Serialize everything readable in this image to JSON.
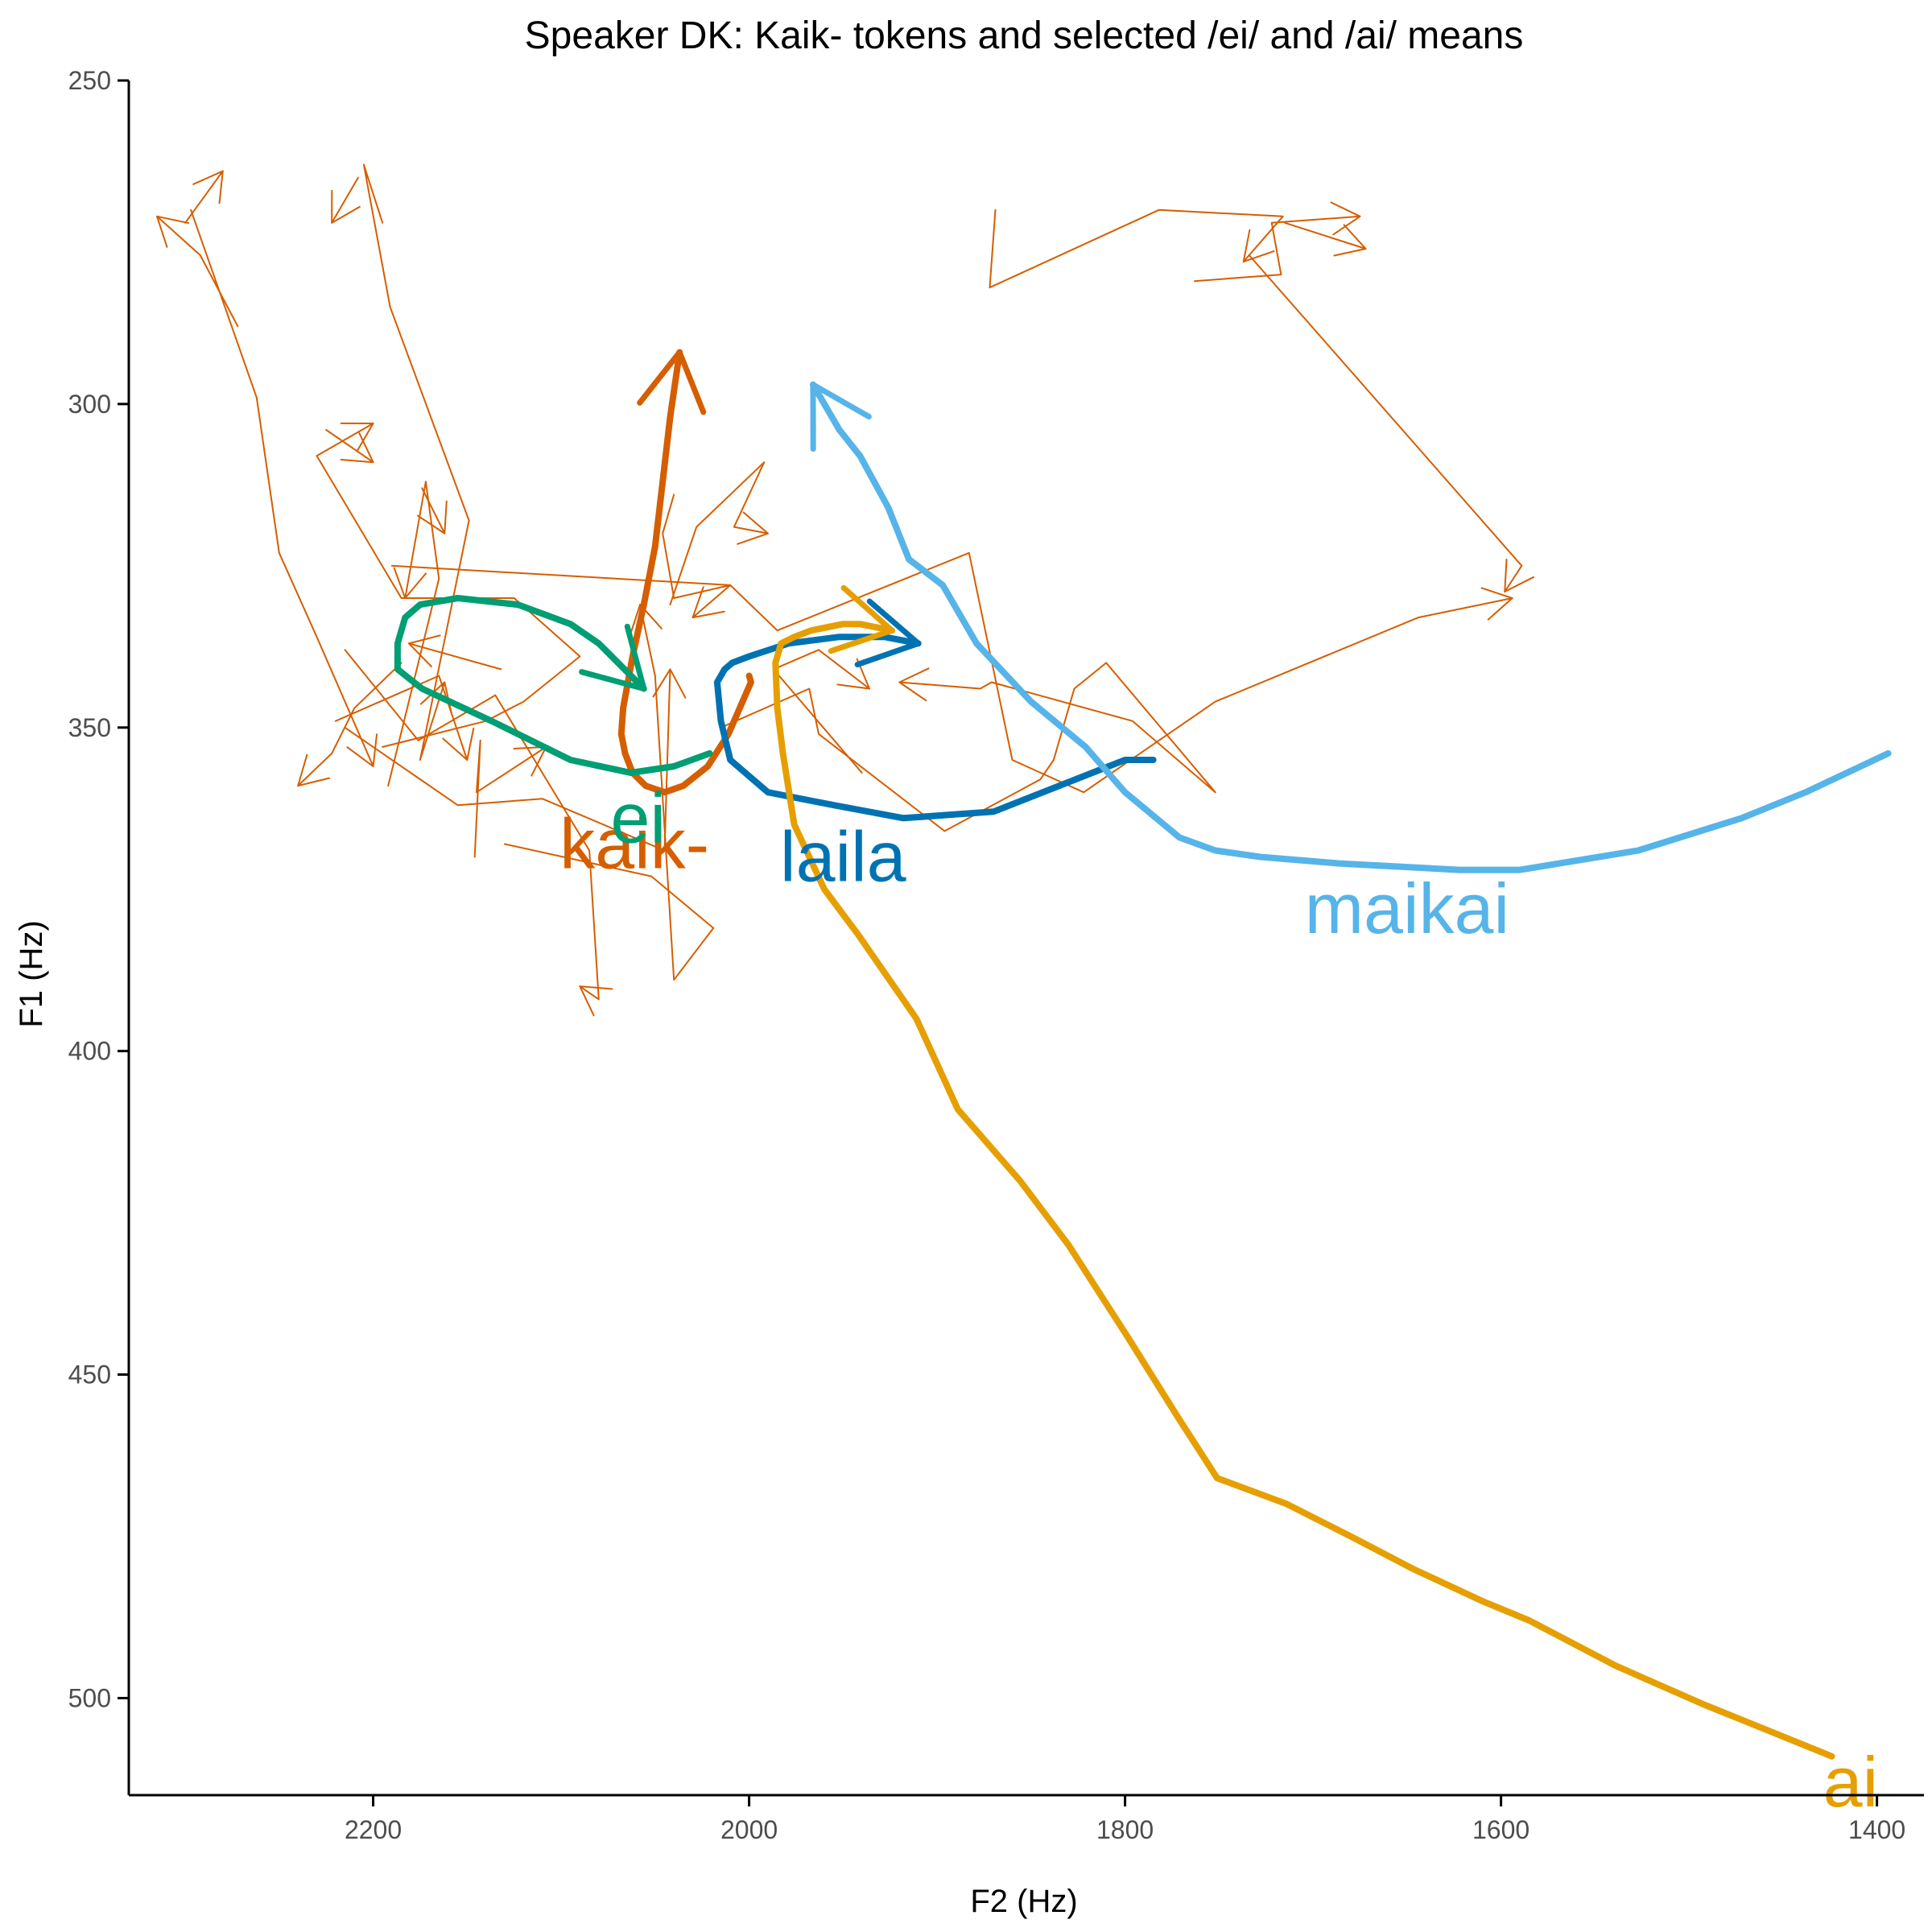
{
  "chart_data": {
    "type": "line",
    "title": "Speaker DK: Kaik- tokens and selected /ei/ and /ai/ means",
    "xlabel": "F2 (Hz)",
    "ylabel": "F1 (Hz)",
    "x_reversed": true,
    "y_reversed": true,
    "xlim": [
      2330,
      1375
    ],
    "ylim": [
      250,
      515
    ],
    "x_ticks": [
      2200,
      2000,
      1800,
      1600,
      1400
    ],
    "y_ticks": [
      250,
      300,
      350,
      400,
      450,
      500
    ],
    "x_tick_labels": [
      "2200",
      "2000",
      "1800",
      "1600",
      "1400"
    ],
    "y_tick_labels": [
      "250",
      "300",
      "350",
      "400",
      "450",
      "500"
    ],
    "grid": false,
    "legend": "none (direct labels)",
    "colors": {
      "kaik": "#D55E00",
      "ei": "#009E73",
      "laila": "#0072B2",
      "maikai": "#56B4E9",
      "ai": "#E69F00"
    },
    "tokens": [
      {
        "color": "#D55E00",
        "points": [
          [
            2130,
            368
          ],
          [
            2052,
            373
          ],
          [
            2019,
            381
          ],
          [
            2040,
            389
          ],
          [
            2050,
            342
          ],
          [
            2058,
            331
          ]
        ]
      },
      {
        "color": "#D55E00",
        "points": [
          [
            2190,
            325
          ],
          [
            2010,
            328
          ],
          [
            2030,
            333
          ]
        ]
      },
      {
        "color": "#D55E00",
        "points": [
          [
            2272,
            288
          ],
          [
            2292,
            277
          ],
          [
            2315,
            271
          ]
        ]
      },
      {
        "color": "#D55E00",
        "points": [
          [
            2300,
            272
          ],
          [
            2280,
            264
          ]
        ]
      },
      {
        "color": "#D55E00",
        "points": [
          [
            2297,
            270
          ],
          [
            2262,
            299
          ],
          [
            2250,
            323
          ],
          [
            2230,
            336
          ],
          [
            2200,
            356
          ]
        ]
      },
      {
        "color": "#D55E00",
        "points": [
          [
            2215,
            338
          ],
          [
            2176,
            352
          ],
          [
            2135,
            345
          ],
          [
            2085,
            369
          ],
          [
            2080,
            392
          ],
          [
            2090,
            390
          ]
        ]
      },
      {
        "color": "#D55E00",
        "points": [
          [
            2195,
            353
          ],
          [
            2140,
            349
          ],
          [
            2120,
            346
          ],
          [
            2090,
            339
          ],
          [
            2125,
            330
          ],
          [
            2185,
            330
          ],
          [
            2230,
            308
          ],
          [
            2200,
            303
          ]
        ]
      },
      {
        "color": "#D55E00",
        "points": [
          [
            2225,
            304
          ],
          [
            2200,
            309
          ]
        ]
      },
      {
        "color": "#D55E00",
        "points": [
          [
            2185,
            340
          ],
          [
            2210,
            347
          ],
          [
            2222,
            354
          ],
          [
            2240,
            359
          ]
        ]
      },
      {
        "color": "#D55E00",
        "points": [
          [
            2220,
            349
          ],
          [
            2165,
            342
          ],
          [
            2150,
            355
          ]
        ]
      },
      {
        "color": "#D55E00",
        "points": [
          [
            2192,
            359
          ],
          [
            2165,
            327
          ],
          [
            2172,
            312
          ],
          [
            2183,
            330
          ]
        ]
      },
      {
        "color": "#D55E00",
        "points": [
          [
            2174,
            313
          ],
          [
            2162,
            320
          ]
        ]
      },
      {
        "color": "#D55E00",
        "points": [
          [
            2215,
            350
          ],
          [
            2155,
            362
          ],
          [
            2110,
            361
          ],
          [
            2045,
            369
          ],
          [
            2042,
            341
          ]
        ]
      },
      {
        "color": "#D55E00",
        "points": [
          [
            2132,
            341
          ],
          [
            2181,
            337
          ]
        ]
      },
      {
        "color": "#D55E00",
        "points": [
          [
            2195,
            272
          ],
          [
            2205,
            263
          ],
          [
            2191,
            285
          ],
          [
            2149,
            318
          ],
          [
            2175,
            355
          ],
          [
            2162,
            343
          ]
        ]
      },
      {
        "color": "#D55E00",
        "points": [
          [
            2208,
            265
          ],
          [
            2222,
            272
          ]
        ]
      },
      {
        "color": "#D55E00",
        "points": [
          [
            2146,
            370
          ],
          [
            2143,
            352
          ],
          [
            2145,
            360
          ],
          [
            2108,
            353
          ]
        ]
      },
      {
        "color": "#D55E00",
        "points": [
          [
            2042,
            331
          ],
          [
            2028,
            319
          ],
          [
            1992,
            309
          ],
          [
            2008,
            319
          ],
          [
            1990,
            320
          ]
        ]
      },
      {
        "color": "#D55E00",
        "points": [
          [
            2015,
            350
          ],
          [
            1968,
            344
          ],
          [
            1963,
            351
          ],
          [
            1896,
            366
          ],
          [
            1845,
            358
          ],
          [
            1838,
            355
          ],
          [
            1827,
            344
          ],
          [
            1810,
            340
          ],
          [
            1752,
            360
          ],
          [
            1796,
            349
          ],
          [
            1871,
            343
          ],
          [
            1877,
            344
          ],
          [
            1920,
            343
          ]
        ]
      },
      {
        "color": "#D55E00",
        "points": [
          [
            2040,
            314
          ],
          [
            2046,
            320
          ],
          [
            2040,
            330
          ],
          [
            2010,
            328
          ],
          [
            1985,
            335
          ],
          [
            1883,
            323
          ],
          [
            1860,
            355
          ],
          [
            1822,
            360
          ],
          [
            1752,
            346
          ],
          [
            1644,
            333
          ],
          [
            1594,
            330
          ]
        ]
      },
      {
        "color": "#D55E00",
        "points": [
          [
            1869,
            270
          ],
          [
            1872,
            282
          ],
          [
            1782,
            270
          ],
          [
            1716,
            271
          ],
          [
            1737,
            278
          ]
        ]
      },
      {
        "color": "#D55E00",
        "points": [
          [
            1763,
            281
          ],
          [
            1717,
            280
          ],
          [
            1722,
            272
          ],
          [
            1675,
            271
          ]
        ]
      },
      {
        "color": "#D55E00",
        "points": [
          [
            1715,
            272
          ],
          [
            1672,
            276
          ]
        ]
      },
      {
        "color": "#D55E00",
        "points": [
          [
            1734,
            277
          ],
          [
            1589,
            325
          ],
          [
            1598,
            329
          ]
        ]
      },
      {
        "color": "#D55E00",
        "points": [
          [
            1940,
            357
          ],
          [
            1987,
            341
          ],
          [
            1963,
            338
          ],
          [
            1936,
            344
          ]
        ]
      }
    ],
    "series": [
      {
        "name": "kaik-",
        "label_pos": [
          2061,
          368
        ],
        "color": "#D55E00",
        "points": [
          [
            2000,
            342
          ],
          [
            1999,
            343
          ],
          [
            2011,
            351
          ],
          [
            2022,
            356
          ],
          [
            2035,
            359
          ],
          [
            2045,
            360
          ],
          [
            2055,
            359
          ],
          [
            2062,
            357
          ],
          [
            2066,
            354
          ],
          [
            2068,
            351
          ],
          [
            2067,
            347
          ],
          [
            2062,
            339
          ],
          [
            2056,
            331
          ],
          [
            2050,
            322
          ],
          [
            2046,
            312
          ],
          [
            2042,
            302
          ],
          [
            2037,
            292
          ]
        ],
        "arrow": true
      },
      {
        "name": "ei",
        "label_pos": [
          2059,
          364
        ],
        "color": "#009E73",
        "points": [
          [
            2021,
            354
          ],
          [
            2040,
            356
          ],
          [
            2063,
            357
          ],
          [
            2095,
            355
          ],
          [
            2137,
            349
          ],
          [
            2174,
            344
          ],
          [
            2187,
            341
          ],
          [
            2187,
            337
          ],
          [
            2183,
            333
          ],
          [
            2175,
            331
          ],
          [
            2155,
            330
          ],
          [
            2123,
            331
          ],
          [
            2095,
            334
          ],
          [
            2080,
            337
          ],
          [
            2056,
            344
          ]
        ],
        "arrow": true
      },
      {
        "name": "laila",
        "label_pos": [
          1950,
          370
        ],
        "color": "#0072B2",
        "points": [
          [
            1785,
            355
          ],
          [
            1800,
            355
          ],
          [
            1870,
            363
          ],
          [
            1918,
            364
          ],
          [
            1955,
            362
          ],
          [
            1990,
            360
          ],
          [
            2010,
            355
          ],
          [
            2015,
            349
          ],
          [
            2017,
            343
          ],
          [
            2013,
            341
          ],
          [
            2009,
            340
          ],
          [
            2000,
            339
          ],
          [
            1979,
            337
          ],
          [
            1952,
            336
          ],
          [
            1928,
            336
          ],
          [
            1910,
            337
          ]
        ],
        "arrow": true
      },
      {
        "name": "maikai",
        "label_pos": [
          1650,
          378
        ],
        "color": "#56B4E9",
        "points": [
          [
            1394,
            354
          ],
          [
            1438,
            360
          ],
          [
            1472,
            364
          ],
          [
            1527,
            369
          ],
          [
            1590,
            372
          ],
          [
            1622,
            372
          ],
          [
            1686,
            371
          ],
          [
            1728,
            370
          ],
          [
            1752,
            369
          ],
          [
            1771,
            367
          ],
          [
            1800,
            360
          ],
          [
            1821,
            353
          ],
          [
            1850,
            346
          ],
          [
            1879,
            337
          ],
          [
            1897,
            328
          ],
          [
            1915,
            324
          ],
          [
            1926,
            316
          ],
          [
            1941,
            308
          ],
          [
            1952,
            304
          ],
          [
            1966,
            297
          ]
        ],
        "arrow": true
      },
      {
        "name": "ai",
        "label_pos": [
          1414,
          513
        ],
        "color": "#E69F00",
        "points": [
          [
            1424,
            509
          ],
          [
            1458,
            505
          ],
          [
            1492,
            501
          ],
          [
            1539,
            495
          ],
          [
            1585,
            488
          ],
          [
            1610,
            485
          ],
          [
            1647,
            480
          ],
          [
            1680,
            475
          ],
          [
            1714,
            470
          ],
          [
            1751,
            466
          ],
          [
            1771,
            457
          ],
          [
            1799,
            444
          ],
          [
            1830,
            430
          ],
          [
            1856,
            420
          ],
          [
            1889,
            409
          ],
          [
            1911,
            395
          ],
          [
            1942,
            382
          ],
          [
            1960,
            375
          ],
          [
            1976,
            365
          ],
          [
            1982,
            354
          ],
          [
            1985,
            347
          ],
          [
            1986,
            340
          ],
          [
            1983,
            337
          ],
          [
            1976,
            336
          ],
          [
            1967,
            335
          ],
          [
            1950,
            334
          ],
          [
            1941,
            334
          ],
          [
            1924,
            335
          ]
        ],
        "arrow": true
      }
    ]
  }
}
